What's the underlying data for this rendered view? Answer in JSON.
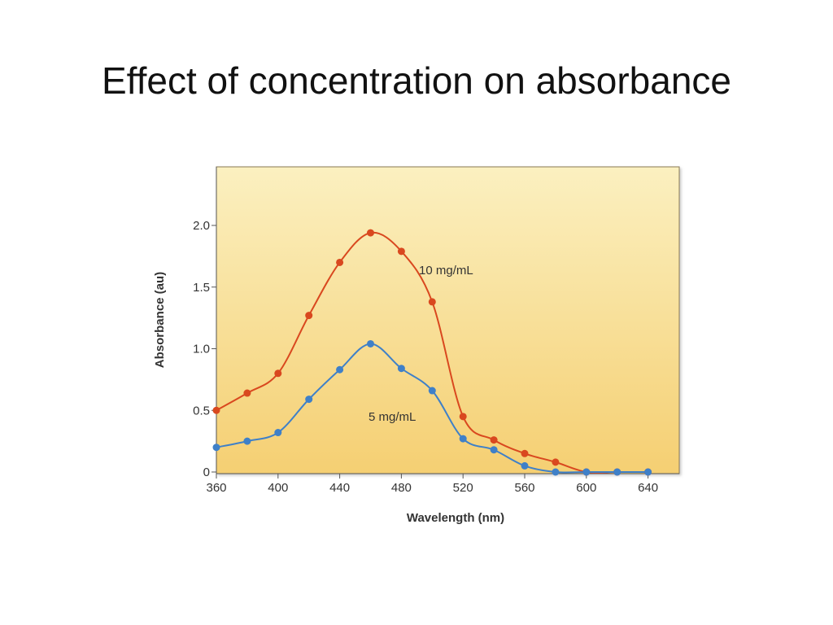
{
  "slide": {
    "title": "Effect of concentration on absorbance"
  },
  "chart_data": {
    "type": "line",
    "title": "",
    "xlabel": "Wavelength (nm)",
    "ylabel": "Absorbance (au)",
    "x_ticks": [
      360,
      400,
      440,
      480,
      520,
      560,
      600,
      640
    ],
    "y_ticks": [
      0,
      0.5,
      1.0,
      1.5,
      2.0
    ],
    "y_tick_labels": [
      "0",
      "0.5",
      "1.0",
      "1.5",
      "2.0"
    ],
    "xlim": [
      360,
      660
    ],
    "ylim": [
      0,
      2.45
    ],
    "grid": false,
    "background": {
      "top": "#fbf0c0",
      "bottom": "#f5cf72"
    },
    "series": [
      {
        "name": "10 mg/mL",
        "color": "#d9481f",
        "x": [
          360,
          380,
          400,
          420,
          440,
          460,
          480,
          500,
          520,
          540,
          560,
          580,
          600,
          620,
          640
        ],
        "y": [
          0.5,
          0.64,
          0.8,
          1.27,
          1.7,
          1.94,
          1.79,
          1.38,
          0.45,
          0.26,
          0.15,
          0.08,
          0.0,
          0.0,
          0.0
        ]
      },
      {
        "name": "5 mg/mL",
        "color": "#3f80c8",
        "x": [
          360,
          380,
          400,
          420,
          440,
          460,
          480,
          500,
          520,
          540,
          560,
          580,
          600,
          620,
          640
        ],
        "y": [
          0.2,
          0.25,
          0.32,
          0.59,
          0.83,
          1.04,
          0.84,
          0.66,
          0.27,
          0.18,
          0.05,
          0.0,
          0.0,
          0.0,
          0.0
        ]
      }
    ]
  }
}
